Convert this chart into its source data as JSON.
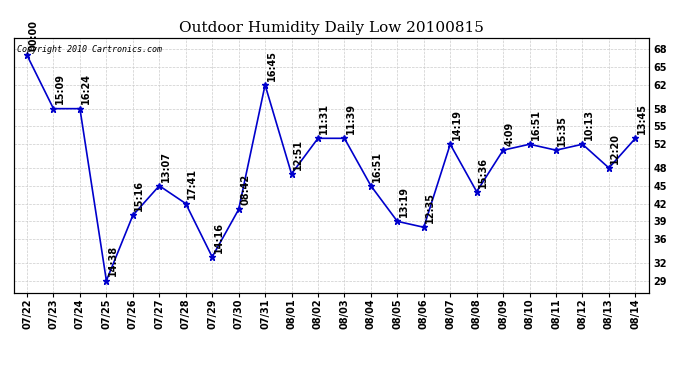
{
  "title": "Outdoor Humidity Daily Low 20100815",
  "copyright": "Copyright 2010 Cartronics.com",
  "dates": [
    "07/22",
    "07/23",
    "07/24",
    "07/25",
    "07/26",
    "07/27",
    "07/28",
    "07/29",
    "07/30",
    "07/31",
    "08/01",
    "08/02",
    "08/03",
    "08/04",
    "08/05",
    "08/06",
    "08/07",
    "08/08",
    "08/09",
    "08/10",
    "08/11",
    "08/12",
    "08/13",
    "08/14"
  ],
  "xtick_labels": [
    "0\n7/22",
    "0\n7/23",
    "0\n7/24",
    "0\n7/25",
    "0\n7/26",
    "0\n7/27",
    "0\n7/28",
    "0\n7/29",
    "0\n7/30",
    "0\n7/31",
    "0\n8/01",
    "0\n8/02",
    "0\n8/03",
    "0\n8/04",
    "0\n8/05",
    "0\n8/06",
    "0\n8/07",
    "0\n8/08",
    "0\n8/09",
    "0\n8/10",
    "0\n8/11",
    "0\n8/12",
    "0\n8/13",
    "0\n8/14"
  ],
  "values": [
    67,
    58,
    58,
    29,
    40,
    45,
    42,
    33,
    41,
    62,
    47,
    53,
    53,
    45,
    39,
    38,
    52,
    44,
    51,
    52,
    51,
    52,
    48,
    53
  ],
  "time_labels": [
    "00:00",
    "15:09",
    "16:24",
    "14:38",
    "15:16",
    "13:07",
    "17:41",
    "14:16",
    "08:42",
    "16:45",
    "12:51",
    "11:31",
    "11:39",
    "16:51",
    "13:19",
    "12:35",
    "14:19",
    "15:36",
    "4:09",
    "16:51",
    "15:35",
    "10:13",
    "12:20",
    "13:45"
  ],
  "yticks": [
    29,
    32,
    36,
    39,
    42,
    45,
    48,
    52,
    55,
    58,
    62,
    65,
    68
  ],
  "line_color": "#0000cc",
  "bg_color": "#ffffff",
  "grid_color": "#cccccc",
  "title_fontsize": 11,
  "label_fontsize": 7,
  "tick_fontsize": 7,
  "ymin": 27,
  "ymax": 70
}
